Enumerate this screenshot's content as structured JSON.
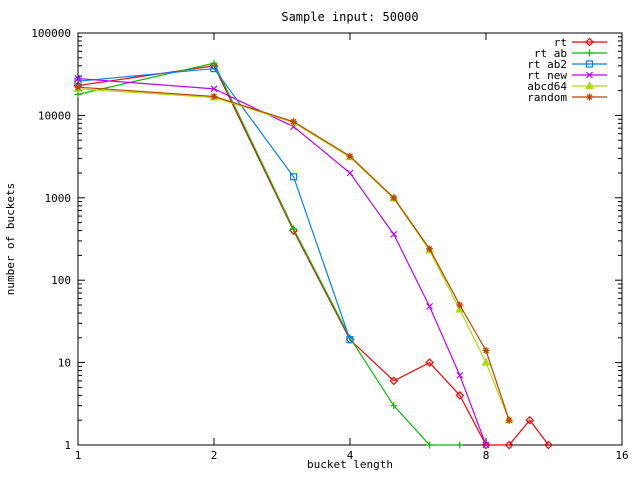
{
  "chart_data": {
    "type": "line",
    "title": "Sample input: 50000",
    "xlabel": "bucket length",
    "ylabel": "number of buckets",
    "x_scale": "log2",
    "y_scale": "log10",
    "xlim": [
      1,
      16
    ],
    "ylim": [
      1,
      100000
    ],
    "x_ticks": [
      1,
      2,
      4,
      8,
      16
    ],
    "y_ticks": [
      1,
      10,
      100,
      1000,
      10000,
      100000
    ],
    "grid": false,
    "legend_position": "top-right-inside",
    "series": [
      {
        "name": "rt",
        "color": "#ff0000",
        "marker": "diamond",
        "x": [
          1,
          2,
          3,
          4,
          5,
          6,
          7,
          8,
          9,
          10,
          11
        ],
        "y": [
          23000,
          40000,
          400,
          19,
          6,
          10,
          4,
          1,
          1,
          2,
          1
        ]
      },
      {
        "name": "rt ab",
        "color": "#00c000",
        "marker": "plus",
        "x": [
          1,
          2,
          3,
          4,
          5,
          6,
          7
        ],
        "y": [
          18000,
          43000,
          420,
          20,
          3,
          1,
          1
        ]
      },
      {
        "name": "rt ab2",
        "color": "#0080ff",
        "marker": "square",
        "x": [
          1,
          2,
          3,
          4
        ],
        "y": [
          26000,
          37000,
          1800,
          19
        ]
      },
      {
        "name": "rt new",
        "color": "#c000ff",
        "marker": "cross",
        "x": [
          1,
          2,
          3,
          4,
          5,
          6,
          7,
          8
        ],
        "y": [
          28000,
          21000,
          7300,
          2000,
          360,
          48,
          7,
          1
        ]
      },
      {
        "name": "abcd64",
        "color": "#aadd00",
        "marker": "triangle",
        "x": [
          1,
          2,
          3,
          4,
          5,
          6,
          7,
          8,
          9
        ],
        "y": [
          21000,
          16500,
          8200,
          3100,
          980,
          230,
          44,
          10,
          2
        ]
      },
      {
        "name": "random",
        "color": "#c04000",
        "marker": "asterisk",
        "x": [
          1,
          2,
          3,
          4,
          5,
          6,
          7,
          8,
          9
        ],
        "y": [
          22000,
          17000,
          8400,
          3200,
          1000,
          240,
          50,
          14,
          2
        ]
      }
    ]
  }
}
